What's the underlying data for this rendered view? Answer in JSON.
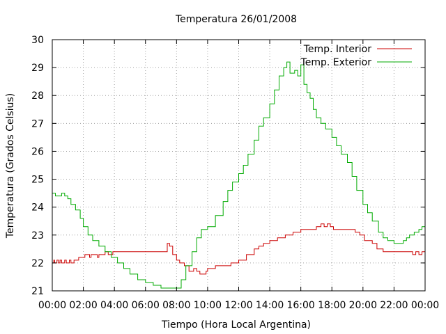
{
  "chart_data": {
    "type": "line",
    "title": "Temperatura 26/01/2008",
    "xlabel": "Tiempo (Hora Local Argentina)",
    "ylabel": "Temperatura (Grados Celsius)",
    "xlim": [
      0,
      24
    ],
    "ylim": [
      21,
      30
    ],
    "xticks": [
      {
        "v": 0,
        "label": "00:00"
      },
      {
        "v": 2,
        "label": "02:00"
      },
      {
        "v": 4,
        "label": "04:00"
      },
      {
        "v": 6,
        "label": "06:00"
      },
      {
        "v": 8,
        "label": "08:00"
      },
      {
        "v": 10,
        "label": "10:00"
      },
      {
        "v": 12,
        "label": "12:00"
      },
      {
        "v": 14,
        "label": "14:00"
      },
      {
        "v": 16,
        "label": "16:00"
      },
      {
        "v": 18,
        "label": "18:00"
      },
      {
        "v": 20,
        "label": "20:00"
      },
      {
        "v": 22,
        "label": "22:00"
      },
      {
        "v": 24,
        "label": "00:00"
      }
    ],
    "yticks": [
      {
        "v": 21,
        "label": "21"
      },
      {
        "v": 22,
        "label": "22"
      },
      {
        "v": 23,
        "label": "23"
      },
      {
        "v": 24,
        "label": "24"
      },
      {
        "v": 25,
        "label": "25"
      },
      {
        "v": 26,
        "label": "26"
      },
      {
        "v": 27,
        "label": "27"
      },
      {
        "v": 28,
        "label": "28"
      },
      {
        "v": 29,
        "label": "29"
      },
      {
        "v": 30,
        "label": "30"
      }
    ],
    "grid": true,
    "legend_position": "top-right",
    "series": [
      {
        "name": "Temp. Interior",
        "color": "#cc0000",
        "x": [
          0,
          0.1,
          0.15,
          0.3,
          0.4,
          0.5,
          0.6,
          0.8,
          0.9,
          1.1,
          1.2,
          1.4,
          1.5,
          1.7,
          1.8,
          2.0,
          2.1,
          2.4,
          2.5,
          2.8,
          2.9,
          3.0,
          3.1,
          3.3,
          3.4,
          3.6,
          3.7,
          3.9,
          4.0,
          4.4,
          5.0,
          6.0,
          7.0,
          7.2,
          7.4,
          7.55,
          7.75,
          8.0,
          8.2,
          8.5,
          8.8,
          9.1,
          9.3,
          9.5,
          9.7,
          9.9,
          10.0,
          10.5,
          11.0,
          11.5,
          12.0,
          12.5,
          13.0,
          13.3,
          13.6,
          14.0,
          14.5,
          15.0,
          15.5,
          16.0,
          16.5,
          17.0,
          17.3,
          17.5,
          17.7,
          17.9,
          18.1,
          19.0,
          19.5,
          19.8,
          20.1,
          20.3,
          20.6,
          20.9,
          21.1,
          21.3,
          22.0,
          23.0,
          23.2,
          23.4,
          23.6,
          23.8,
          24.0
        ],
        "y": [
          22.0,
          22.1,
          22.0,
          22.1,
          22.0,
          22.1,
          22.0,
          22.1,
          22.0,
          22.1,
          22.0,
          22.1,
          22.1,
          22.2,
          22.2,
          22.2,
          22.3,
          22.2,
          22.3,
          22.3,
          22.2,
          22.3,
          22.3,
          22.3,
          22.4,
          22.3,
          22.3,
          22.4,
          22.4,
          22.4,
          22.4,
          22.4,
          22.4,
          22.4,
          22.7,
          22.6,
          22.3,
          22.1,
          22.0,
          21.9,
          21.7,
          21.8,
          21.7,
          21.6,
          21.6,
          21.7,
          21.8,
          21.9,
          21.9,
          22.0,
          22.1,
          22.3,
          22.5,
          22.6,
          22.7,
          22.8,
          22.9,
          23.0,
          23.1,
          23.2,
          23.2,
          23.3,
          23.4,
          23.3,
          23.4,
          23.3,
          23.2,
          23.2,
          23.1,
          23.0,
          22.8,
          22.8,
          22.7,
          22.5,
          22.5,
          22.4,
          22.4,
          22.4,
          22.3,
          22.4,
          22.3,
          22.4,
          22.3
        ]
      },
      {
        "name": "Temp. Exterior",
        "color": "#00aa00",
        "x": [
          0,
          0.2,
          0.4,
          0.6,
          0.8,
          1.0,
          1.2,
          1.5,
          1.8,
          2.0,
          2.3,
          2.6,
          3.0,
          3.4,
          3.8,
          4.2,
          4.6,
          5.0,
          5.5,
          6.0,
          6.5,
          7.0,
          7.5,
          8.0,
          8.3,
          8.6,
          9.0,
          9.3,
          9.6,
          10.0,
          10.5,
          11.0,
          11.3,
          11.6,
          12.0,
          12.3,
          12.6,
          13.0,
          13.3,
          13.6,
          14.0,
          14.3,
          14.6,
          14.9,
          15.1,
          15.3,
          15.6,
          15.8,
          16.0,
          16.2,
          16.4,
          16.6,
          16.8,
          17.0,
          17.3,
          17.6,
          18.0,
          18.3,
          18.6,
          19.0,
          19.3,
          19.6,
          20.0,
          20.3,
          20.6,
          21.0,
          21.3,
          21.6,
          22.0,
          22.3,
          22.6,
          22.8,
          23.0,
          23.3,
          23.6,
          23.8,
          24.0
        ],
        "y": [
          24.5,
          24.4,
          24.4,
          24.5,
          24.4,
          24.3,
          24.1,
          23.9,
          23.6,
          23.3,
          23.0,
          22.8,
          22.6,
          22.4,
          22.2,
          22.0,
          21.8,
          21.6,
          21.4,
          21.3,
          21.2,
          21.1,
          21.1,
          21.1,
          21.4,
          21.9,
          22.4,
          22.9,
          23.2,
          23.3,
          23.7,
          24.2,
          24.6,
          24.9,
          25.2,
          25.5,
          25.9,
          26.4,
          26.9,
          27.2,
          27.7,
          28.2,
          28.7,
          29.0,
          29.2,
          28.8,
          28.9,
          28.7,
          29.1,
          28.4,
          28.1,
          27.9,
          27.5,
          27.2,
          27.0,
          26.8,
          26.5,
          26.2,
          25.9,
          25.6,
          25.1,
          24.6,
          24.1,
          23.8,
          23.5,
          23.1,
          22.9,
          22.8,
          22.7,
          22.7,
          22.8,
          22.9,
          23.0,
          23.1,
          23.2,
          23.3,
          23.2
        ]
      }
    ]
  }
}
